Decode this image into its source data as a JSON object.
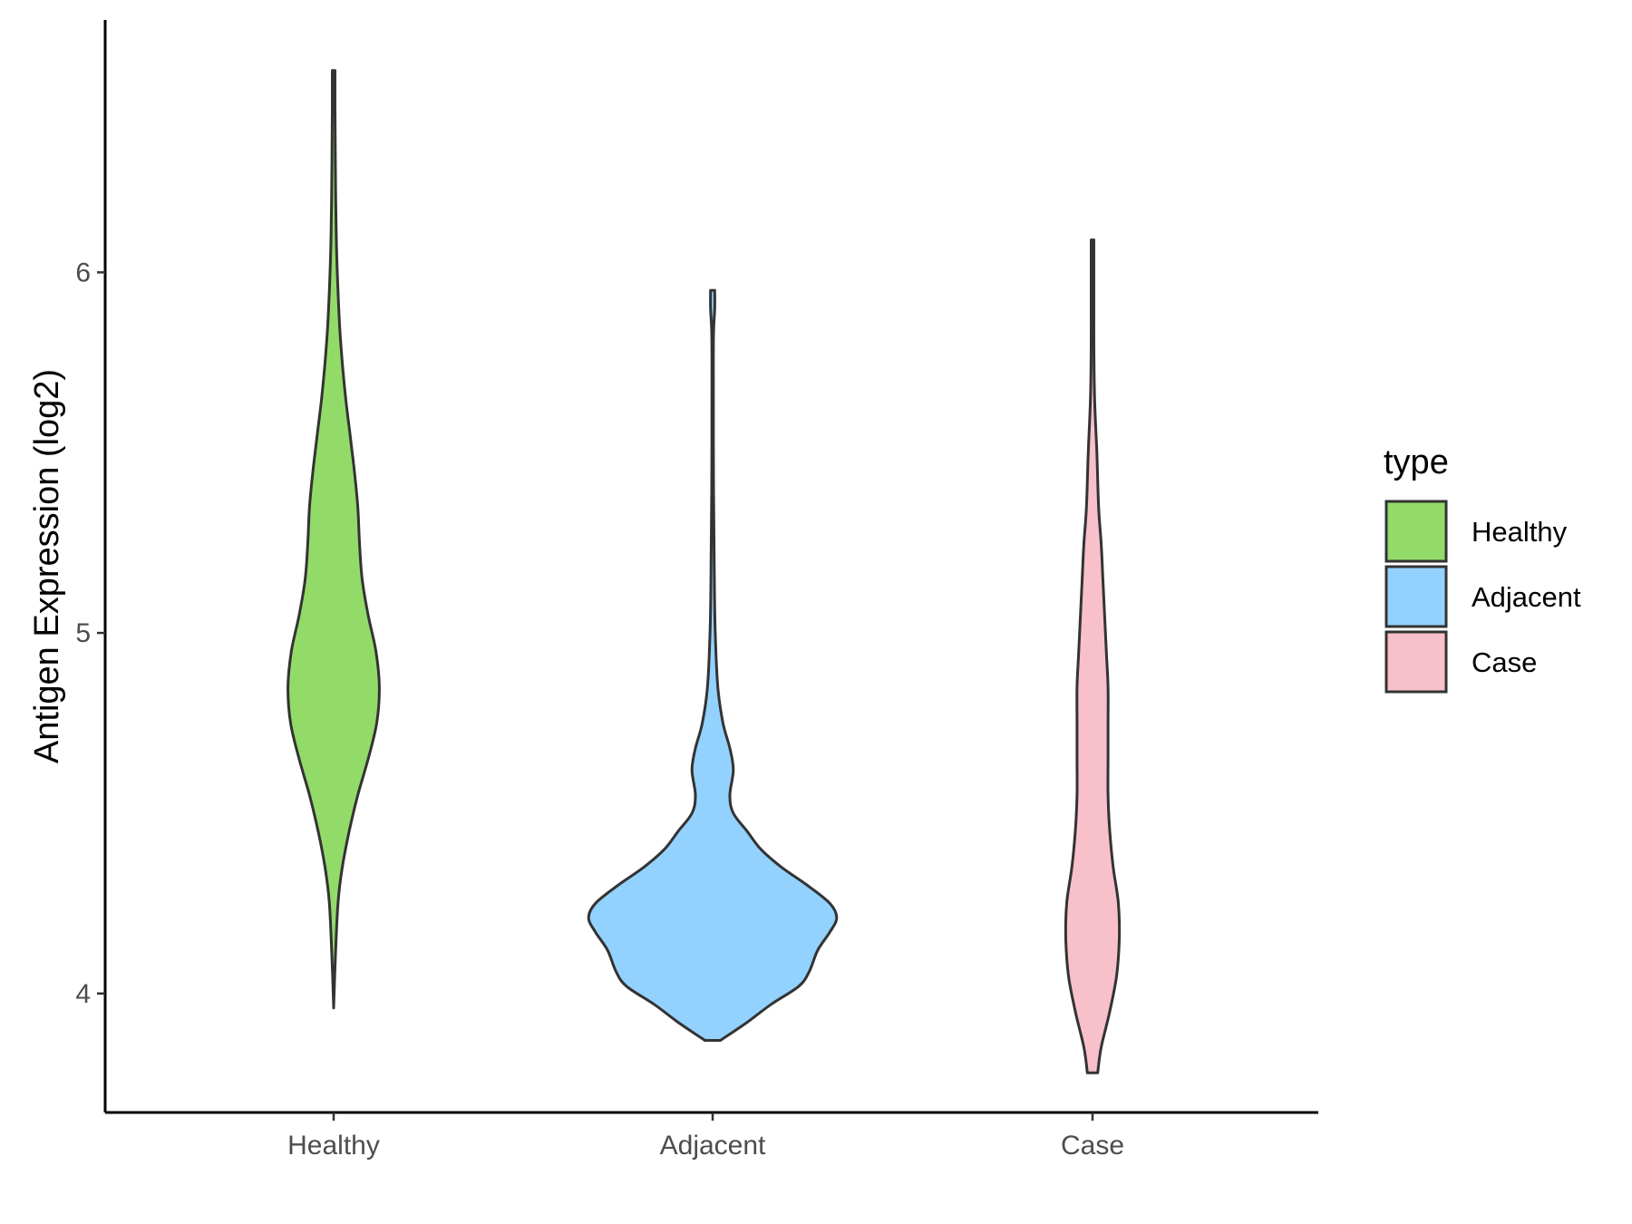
{
  "chart_data": {
    "type": "violin",
    "title": "",
    "xlabel": "",
    "ylabel": "Antigen Expression (log2)",
    "categories": [
      "Healthy",
      "Adjacent",
      "Case"
    ],
    "yticks": [
      4,
      5,
      6
    ],
    "ylim": [
      3.67,
      6.7
    ],
    "grid": false,
    "legend": {
      "title": "type",
      "position": "right",
      "entries": [
        {
          "label": "Healthy",
          "color": "#93DB69"
        },
        {
          "label": "Adjacent",
          "color": "#93D2FF"
        },
        {
          "label": "Case",
          "color": "#F7C0CB"
        }
      ]
    },
    "series": [
      {
        "category": "Healthy",
        "color": "#93DB69",
        "ymin": 3.96,
        "ymax": 6.56,
        "profile": [
          [
            3.96,
            0.0
          ],
          [
            4.1,
            0.01
          ],
          [
            4.25,
            0.025
          ],
          [
            4.35,
            0.05
          ],
          [
            4.45,
            0.09
          ],
          [
            4.55,
            0.14
          ],
          [
            4.65,
            0.2
          ],
          [
            4.75,
            0.25
          ],
          [
            4.85,
            0.265
          ],
          [
            4.95,
            0.245
          ],
          [
            5.05,
            0.2
          ],
          [
            5.15,
            0.165
          ],
          [
            5.25,
            0.15
          ],
          [
            5.35,
            0.14
          ],
          [
            5.45,
            0.12
          ],
          [
            5.55,
            0.095
          ],
          [
            5.65,
            0.07
          ],
          [
            5.75,
            0.05
          ],
          [
            5.85,
            0.035
          ],
          [
            5.95,
            0.025
          ],
          [
            6.1,
            0.015
          ],
          [
            6.3,
            0.01
          ],
          [
            6.45,
            0.008
          ],
          [
            6.56,
            0.008
          ]
        ]
      },
      {
        "category": "Adjacent",
        "color": "#93D2FF",
        "ymin": 3.87,
        "ymax": 5.95,
        "profile": [
          [
            3.87,
            0.045
          ],
          [
            3.92,
            0.2
          ],
          [
            3.97,
            0.34
          ],
          [
            4.02,
            0.5
          ],
          [
            4.06,
            0.56
          ],
          [
            4.12,
            0.61
          ],
          [
            4.17,
            0.68
          ],
          [
            4.21,
            0.72
          ],
          [
            4.25,
            0.68
          ],
          [
            4.3,
            0.55
          ],
          [
            4.35,
            0.4
          ],
          [
            4.4,
            0.28
          ],
          [
            4.45,
            0.2
          ],
          [
            4.5,
            0.12
          ],
          [
            4.55,
            0.1
          ],
          [
            4.62,
            0.12
          ],
          [
            4.68,
            0.1
          ],
          [
            4.75,
            0.06
          ],
          [
            4.85,
            0.03
          ],
          [
            5.0,
            0.015
          ],
          [
            5.15,
            0.01
          ],
          [
            5.4,
            0.005
          ],
          [
            5.7,
            0.004
          ],
          [
            5.83,
            0.005
          ],
          [
            5.9,
            0.012
          ],
          [
            5.95,
            0.012
          ]
        ]
      },
      {
        "category": "Case",
        "color": "#F7C0CB",
        "ymin": 3.78,
        "ymax": 6.09,
        "profile": [
          [
            3.78,
            0.03
          ],
          [
            3.85,
            0.05
          ],
          [
            3.95,
            0.1
          ],
          [
            4.05,
            0.14
          ],
          [
            4.15,
            0.155
          ],
          [
            4.25,
            0.15
          ],
          [
            4.35,
            0.12
          ],
          [
            4.45,
            0.1
          ],
          [
            4.55,
            0.09
          ],
          [
            4.65,
            0.09
          ],
          [
            4.75,
            0.09
          ],
          [
            4.85,
            0.09
          ],
          [
            4.95,
            0.08
          ],
          [
            5.05,
            0.07
          ],
          [
            5.15,
            0.06
          ],
          [
            5.25,
            0.05
          ],
          [
            5.35,
            0.035
          ],
          [
            5.5,
            0.025
          ],
          [
            5.65,
            0.012
          ],
          [
            5.8,
            0.008
          ],
          [
            5.95,
            0.008
          ],
          [
            6.09,
            0.008
          ]
        ]
      }
    ]
  }
}
